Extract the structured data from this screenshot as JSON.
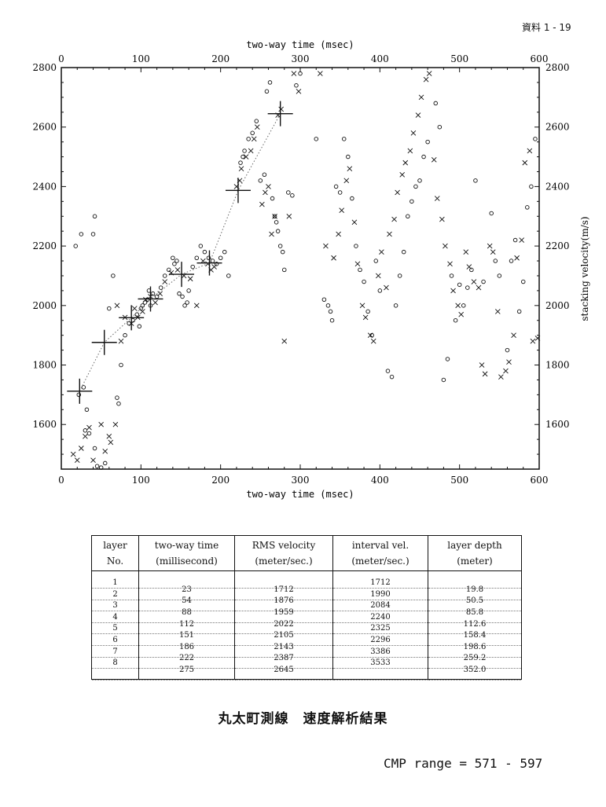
{
  "doc_label": "資料 1 - 19",
  "title": "丸太町測線　速度解析結果",
  "cmp_range": "CMP range = 571 - 597",
  "chart_data": {
    "type": "scatter",
    "title": "",
    "xlabel": "two-way time (msec)",
    "ylabel": "stacking velocity(m/s)",
    "xlim": [
      0,
      600
    ],
    "ylim": [
      1450,
      2800
    ],
    "x_ticks": [
      0,
      100,
      200,
      300,
      400,
      500,
      600
    ],
    "y_ticks": [
      1600,
      1800,
      2000,
      2200,
      2400,
      2600,
      2800
    ],
    "grid": false,
    "picks": {
      "x": [
        23,
        54,
        88,
        112,
        151,
        186,
        222,
        275
      ],
      "y": [
        1712,
        1876,
        1959,
        2022,
        2105,
        2143,
        2387,
        2645
      ]
    },
    "circles": [
      [
        18,
        2200
      ],
      [
        25,
        2240
      ],
      [
        40,
        2240
      ],
      [
        42,
        2300
      ],
      [
        22,
        1700
      ],
      [
        28,
        1725
      ],
      [
        32,
        1650
      ],
      [
        30,
        1580
      ],
      [
        35,
        1570
      ],
      [
        42,
        1520
      ],
      [
        45,
        1460
      ],
      [
        50,
        1455
      ],
      [
        55,
        1470
      ],
      [
        60,
        1990
      ],
      [
        65,
        2100
      ],
      [
        70,
        1690
      ],
      [
        72,
        1670
      ],
      [
        75,
        1800
      ],
      [
        80,
        1900
      ],
      [
        85,
        1940
      ],
      [
        90,
        1950
      ],
      [
        95,
        1970
      ],
      [
        98,
        1930
      ],
      [
        100,
        1990
      ],
      [
        102,
        2000
      ],
      [
        105,
        2010
      ],
      [
        108,
        2020
      ],
      [
        110,
        2050
      ],
      [
        112,
        2000
      ],
      [
        115,
        2040
      ],
      [
        120,
        2030
      ],
      [
        125,
        2060
      ],
      [
        130,
        2100
      ],
      [
        135,
        2120
      ],
      [
        140,
        2160
      ],
      [
        142,
        2140
      ],
      [
        145,
        2150
      ],
      [
        148,
        2040
      ],
      [
        152,
        2030
      ],
      [
        155,
        2000
      ],
      [
        158,
        2010
      ],
      [
        160,
        2050
      ],
      [
        165,
        2130
      ],
      [
        170,
        2160
      ],
      [
        175,
        2200
      ],
      [
        180,
        2180
      ],
      [
        185,
        2160
      ],
      [
        190,
        2150
      ],
      [
        195,
        2140
      ],
      [
        200,
        2160
      ],
      [
        205,
        2180
      ],
      [
        210,
        2100
      ],
      [
        225,
        2480
      ],
      [
        228,
        2500
      ],
      [
        230,
        2520
      ],
      [
        235,
        2560
      ],
      [
        240,
        2580
      ],
      [
        245,
        2620
      ],
      [
        250,
        2420
      ],
      [
        255,
        2440
      ],
      [
        258,
        2720
      ],
      [
        262,
        2750
      ],
      [
        265,
        2360
      ],
      [
        268,
        2300
      ],
      [
        270,
        2280
      ],
      [
        272,
        2250
      ],
      [
        275,
        2200
      ],
      [
        278,
        2180
      ],
      [
        280,
        2120
      ],
      [
        285,
        2380
      ],
      [
        290,
        2370
      ],
      [
        295,
        2740
      ],
      [
        300,
        2780
      ],
      [
        320,
        2560
      ],
      [
        330,
        2020
      ],
      [
        335,
        2000
      ],
      [
        338,
        1980
      ],
      [
        340,
        1950
      ],
      [
        345,
        2400
      ],
      [
        350,
        2380
      ],
      [
        355,
        2560
      ],
      [
        360,
        2500
      ],
      [
        365,
        2360
      ],
      [
        370,
        2200
      ],
      [
        375,
        2120
      ],
      [
        380,
        2080
      ],
      [
        385,
        1980
      ],
      [
        390,
        1900
      ],
      [
        395,
        2150
      ],
      [
        400,
        2050
      ],
      [
        410,
        1780
      ],
      [
        415,
        1760
      ],
      [
        420,
        2000
      ],
      [
        425,
        2100
      ],
      [
        430,
        2180
      ],
      [
        435,
        2300
      ],
      [
        440,
        2350
      ],
      [
        445,
        2400
      ],
      [
        450,
        2420
      ],
      [
        455,
        2500
      ],
      [
        460,
        2550
      ],
      [
        470,
        2680
      ],
      [
        475,
        2600
      ],
      [
        480,
        1750
      ],
      [
        485,
        1820
      ],
      [
        490,
        2100
      ],
      [
        495,
        1950
      ],
      [
        500,
        2070
      ],
      [
        505,
        2000
      ],
      [
        510,
        2060
      ],
      [
        515,
        2120
      ],
      [
        520,
        2420
      ],
      [
        530,
        2080
      ],
      [
        540,
        2310
      ],
      [
        545,
        2150
      ],
      [
        550,
        2100
      ],
      [
        560,
        1850
      ],
      [
        565,
        2150
      ],
      [
        570,
        2220
      ],
      [
        575,
        1980
      ],
      [
        580,
        2080
      ],
      [
        585,
        2330
      ],
      [
        590,
        2400
      ],
      [
        595,
        2560
      ]
    ],
    "crosses": [
      [
        15,
        1500
      ],
      [
        20,
        1480
      ],
      [
        25,
        1520
      ],
      [
        30,
        1560
      ],
      [
        35,
        1590
      ],
      [
        40,
        1480
      ],
      [
        50,
        1600
      ],
      [
        55,
        1510
      ],
      [
        60,
        1560
      ],
      [
        62,
        1540
      ],
      [
        68,
        1600
      ],
      [
        70,
        2000
      ],
      [
        75,
        1880
      ],
      [
        80,
        1960
      ],
      [
        88,
        1940
      ],
      [
        92,
        1990
      ],
      [
        96,
        1960
      ],
      [
        102,
        1980
      ],
      [
        106,
        2020
      ],
      [
        112,
        2030
      ],
      [
        118,
        2010
      ],
      [
        124,
        2040
      ],
      [
        130,
        2080
      ],
      [
        138,
        2110
      ],
      [
        146,
        2120
      ],
      [
        154,
        2100
      ],
      [
        162,
        2090
      ],
      [
        170,
        2000
      ],
      [
        178,
        2150
      ],
      [
        184,
        2140
      ],
      [
        188,
        2120
      ],
      [
        192,
        2130
      ],
      [
        220,
        2400
      ],
      [
        224,
        2420
      ],
      [
        226,
        2460
      ],
      [
        232,
        2500
      ],
      [
        238,
        2520
      ],
      [
        242,
        2560
      ],
      [
        246,
        2600
      ],
      [
        252,
        2340
      ],
      [
        256,
        2380
      ],
      [
        260,
        2400
      ],
      [
        264,
        2240
      ],
      [
        268,
        2300
      ],
      [
        272,
        2640
      ],
      [
        276,
        2660
      ],
      [
        280,
        1880
      ],
      [
        286,
        2300
      ],
      [
        292,
        2780
      ],
      [
        298,
        2720
      ],
      [
        325,
        2780
      ],
      [
        332,
        2200
      ],
      [
        342,
        2160
      ],
      [
        348,
        2240
      ],
      [
        352,
        2320
      ],
      [
        358,
        2420
      ],
      [
        362,
        2460
      ],
      [
        368,
        2280
      ],
      [
        372,
        2140
      ],
      [
        378,
        2000
      ],
      [
        382,
        1960
      ],
      [
        388,
        1900
      ],
      [
        392,
        1880
      ],
      [
        398,
        2100
      ],
      [
        402,
        2180
      ],
      [
        408,
        2060
      ],
      [
        412,
        2240
      ],
      [
        418,
        2290
      ],
      [
        422,
        2380
      ],
      [
        428,
        2440
      ],
      [
        432,
        2480
      ],
      [
        438,
        2520
      ],
      [
        442,
        2580
      ],
      [
        448,
        2640
      ],
      [
        452,
        2700
      ],
      [
        458,
        2760
      ],
      [
        462,
        2780
      ],
      [
        468,
        2490
      ],
      [
        472,
        2360
      ],
      [
        478,
        2290
      ],
      [
        482,
        2200
      ],
      [
        488,
        2140
      ],
      [
        492,
        2050
      ],
      [
        498,
        2000
      ],
      [
        502,
        1970
      ],
      [
        508,
        2180
      ],
      [
        512,
        2130
      ],
      [
        518,
        2080
      ],
      [
        524,
        2060
      ],
      [
        528,
        1800
      ],
      [
        532,
        1770
      ],
      [
        538,
        2200
      ],
      [
        542,
        2180
      ],
      [
        548,
        1980
      ],
      [
        552,
        1760
      ],
      [
        558,
        1780
      ],
      [
        562,
        1810
      ],
      [
        568,
        1900
      ],
      [
        572,
        2160
      ],
      [
        578,
        2220
      ],
      [
        582,
        2480
      ],
      [
        588,
        2520
      ],
      [
        592,
        1880
      ],
      [
        598,
        1890
      ]
    ]
  },
  "table": {
    "headers": [
      [
        "layer",
        "No."
      ],
      [
        "two-way time",
        "(millisecond)"
      ],
      [
        "RMS velocity",
        "(meter/sec.)"
      ],
      [
        "interval vel.",
        "(meter/sec.)"
      ],
      [
        "layer depth",
        "(meter)"
      ]
    ],
    "layer_no": [
      "1",
      "2",
      "3",
      "4",
      "5",
      "6",
      "7",
      "8"
    ],
    "two_way_time": [
      "23",
      "54",
      "88",
      "112",
      "151",
      "186",
      "222",
      "275"
    ],
    "rms_velocity": [
      "1712",
      "1876",
      "1959",
      "2022",
      "2105",
      "2143",
      "2387",
      "2645"
    ],
    "interval_vel": [
      "1712",
      "1990",
      "2084",
      "2240",
      "2325",
      "2296",
      "3386",
      "3533"
    ],
    "layer_depth": [
      "19.8",
      "50.5",
      "85.8",
      "112.6",
      "158.4",
      "198.6",
      "259.2",
      "352.0"
    ]
  }
}
